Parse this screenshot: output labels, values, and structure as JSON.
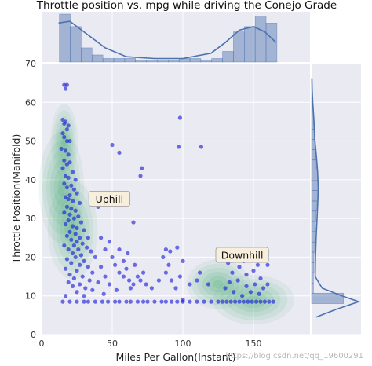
{
  "chart_data": {
    "type": "scatter",
    "title": "Throttle position vs. mpg while driving the Conejo Grade",
    "xlabel": "Miles Per Gallon(Instant)",
    "ylabel": "Throttle Position(Manifold)",
    "xlim": [
      0,
      190
    ],
    "ylim": [
      0,
      70
    ],
    "xticks": [
      0,
      50,
      100,
      150
    ],
    "yticks": [
      0,
      10,
      20,
      30,
      40,
      50,
      60,
      70
    ],
    "grid": true,
    "annotations": [
      {
        "text": "Uphill",
        "x": 48,
        "y": 35
      },
      {
        "text": "Downhill",
        "x": 142,
        "y": 20.5
      }
    ],
    "marginal_x": {
      "bin_edges": [
        12.6,
        20.3,
        28.0,
        35.7,
        43.4,
        51.1,
        58.8,
        66.5,
        74.2,
        81.9,
        89.6,
        97.3,
        105.0,
        112.7,
        120.4,
        128.1,
        135.8,
        143.5,
        151.2,
        158.9,
        166.6
      ],
      "heights": [
        0.027,
        0.02,
        0.008,
        0.004,
        0.002,
        0.002,
        0.002,
        0.001,
        0.001,
        0.001,
        0.001,
        0.002,
        0.002,
        0.001,
        0.002,
        0.006,
        0.017,
        0.02,
        0.026,
        0.022
      ],
      "kde_x": [
        12,
        20,
        30,
        45,
        60,
        80,
        100,
        120,
        130,
        140,
        150,
        158,
        166
      ],
      "kde_y": [
        0.022,
        0.023,
        0.017,
        0.008,
        0.003,
        0.002,
        0.002,
        0.005,
        0.011,
        0.018,
        0.02,
        0.017,
        0.011
      ]
    },
    "marginal_y": {
      "bin_edges": [
        8.0,
        10.7,
        13.3,
        16.0,
        18.6,
        21.3,
        23.9,
        26.6,
        29.2,
        31.9,
        34.5,
        37.2,
        39.8,
        42.5,
        45.1,
        47.8,
        50.4,
        53.1,
        55.7,
        58.4,
        61.0,
        63.7,
        66.3
      ],
      "heights": [
        0.105,
        0.006,
        0.006,
        0.008,
        0.008,
        0.012,
        0.012,
        0.013,
        0.015,
        0.018,
        0.02,
        0.022,
        0.02,
        0.016,
        0.014,
        0.011,
        0.009,
        0.008,
        0.006,
        0.004,
        0.003,
        0.002
      ],
      "kde_y": [
        4.5,
        6.5,
        8.5,
        10.0,
        12.0,
        15.0,
        20.0,
        25.0,
        30.0,
        35.0,
        38.0,
        42.0,
        46.0,
        50.0,
        55.0,
        60.0,
        63.0,
        66.0
      ],
      "kde_x": [
        0.015,
        0.08,
        0.155,
        0.1,
        0.035,
        0.012,
        0.013,
        0.015,
        0.018,
        0.021,
        0.022,
        0.02,
        0.016,
        0.011,
        0.008,
        0.004,
        0.002,
        0.001
      ]
    },
    "kde_regions": [
      {
        "x": 14,
        "y": 38,
        "sx": 10,
        "sy": 9
      },
      {
        "x": 22,
        "y": 27,
        "sx": 11,
        "sy": 8
      },
      {
        "x": 16,
        "y": 50,
        "sx": 6,
        "sy": 6
      },
      {
        "x": 150,
        "y": 9,
        "sx": 18,
        "sy": 4
      },
      {
        "x": 125,
        "y": 13,
        "sx": 14,
        "sy": 4
      }
    ],
    "series": [
      {
        "points": [
          [
            16,
            64.5
          ],
          [
            17,
            63.5
          ],
          [
            18,
            64.5
          ],
          [
            15,
            55.5
          ],
          [
            16,
            54.5
          ],
          [
            17,
            55
          ],
          [
            18,
            53
          ],
          [
            15,
            52
          ],
          [
            19,
            54
          ],
          [
            16,
            51
          ],
          [
            18,
            50
          ],
          [
            20,
            50
          ],
          [
            14,
            48
          ],
          [
            17,
            47.5
          ],
          [
            19,
            46.5
          ],
          [
            16,
            45
          ],
          [
            18,
            44
          ],
          [
            20,
            44.5
          ],
          [
            15,
            43
          ],
          [
            22,
            42
          ],
          [
            17,
            41
          ],
          [
            19,
            40.5
          ],
          [
            24,
            40
          ],
          [
            16,
            39
          ],
          [
            21,
            38.5
          ],
          [
            18,
            38
          ],
          [
            23,
            37.5
          ],
          [
            20,
            36
          ],
          [
            25,
            36.5
          ],
          [
            17,
            35.5
          ],
          [
            19,
            35
          ],
          [
            22,
            34.5
          ],
          [
            27,
            34
          ],
          [
            18,
            33
          ],
          [
            21,
            32.5
          ],
          [
            24,
            32
          ],
          [
            16,
            31.5
          ],
          [
            20,
            31
          ],
          [
            26,
            30.5
          ],
          [
            23,
            30
          ],
          [
            19,
            29.5
          ],
          [
            28,
            29
          ],
          [
            17,
            28.5
          ],
          [
            22,
            28
          ],
          [
            25,
            27.5
          ],
          [
            30,
            27
          ],
          [
            20,
            26.5
          ],
          [
            24,
            26
          ],
          [
            18,
            25.5
          ],
          [
            27,
            25
          ],
          [
            33,
            25
          ],
          [
            21,
            24.5
          ],
          [
            25,
            24
          ],
          [
            29,
            23.5
          ],
          [
            16,
            23
          ],
          [
            23,
            23
          ],
          [
            32,
            22.5
          ],
          [
            19,
            22
          ],
          [
            26,
            22
          ],
          [
            35,
            21.5
          ],
          [
            22,
            21
          ],
          [
            28,
            20.5
          ],
          [
            24,
            20
          ],
          [
            38,
            20
          ],
          [
            18,
            19.5
          ],
          [
            30,
            19
          ],
          [
            21,
            18.5
          ],
          [
            27,
            18
          ],
          [
            33,
            17.5
          ],
          [
            42,
            17.5
          ],
          [
            17,
            17
          ],
          [
            25,
            16.5
          ],
          [
            36,
            16
          ],
          [
            20,
            15.5
          ],
          [
            29,
            15
          ],
          [
            45,
            15
          ],
          [
            23,
            14.5
          ],
          [
            34,
            14
          ],
          [
            19,
            13.5
          ],
          [
            40,
            13.5
          ],
          [
            27,
            13
          ],
          [
            48,
            13
          ],
          [
            22,
            12.5
          ],
          [
            31,
            12
          ],
          [
            36,
            11.5
          ],
          [
            53,
            11.5
          ],
          [
            25,
            11
          ],
          [
            44,
            10.5
          ],
          [
            17,
            10
          ],
          [
            30,
            10
          ],
          [
            40,
            33
          ],
          [
            42,
            25
          ],
          [
            45,
            22
          ],
          [
            48,
            24
          ],
          [
            50,
            20
          ],
          [
            52,
            18
          ],
          [
            55,
            16
          ],
          [
            58,
            15
          ],
          [
            60,
            17
          ],
          [
            62,
            14
          ],
          [
            65,
            13
          ],
          [
            55,
            22
          ],
          [
            58,
            19
          ],
          [
            61,
            21
          ],
          [
            63,
            12
          ],
          [
            68,
            15
          ],
          [
            66,
            18
          ],
          [
            70,
            14
          ],
          [
            72,
            16
          ],
          [
            74,
            13
          ],
          [
            78,
            12
          ],
          [
            83,
            14
          ],
          [
            88,
            16
          ],
          [
            86,
            20
          ],
          [
            90,
            18
          ],
          [
            92,
            14
          ],
          [
            95,
            12
          ],
          [
            98,
            15
          ],
          [
            105,
            13
          ],
          [
            110,
            14
          ],
          [
            112,
            16
          ],
          [
            118,
            13
          ],
          [
            100,
            9
          ],
          [
            50,
            49
          ],
          [
            55,
            47
          ],
          [
            70,
            41
          ],
          [
            71,
            43
          ],
          [
            98,
            56
          ],
          [
            97,
            48.5
          ],
          [
            113,
            48.5
          ],
          [
            88,
            22
          ],
          [
            91,
            21.5
          ],
          [
            96,
            22.5
          ],
          [
            100,
            19
          ],
          [
            65,
            29
          ],
          [
            15,
            8.5
          ],
          [
            20,
            8.5
          ],
          [
            25,
            8.5
          ],
          [
            30,
            8.5
          ],
          [
            33,
            8.5
          ],
          [
            38,
            8.5
          ],
          [
            43,
            8.5
          ],
          [
            47,
            8.5
          ],
          [
            52,
            8.5
          ],
          [
            55,
            8.5
          ],
          [
            60,
            8.5
          ],
          [
            63,
            8.5
          ],
          [
            68,
            8.5
          ],
          [
            72,
            8.5
          ],
          [
            75,
            8.5
          ],
          [
            80,
            8.5
          ],
          [
            85,
            8.5
          ],
          [
            88,
            8.5
          ],
          [
            92,
            8.5
          ],
          [
            96,
            8.5
          ],
          [
            100,
            8.5
          ],
          [
            105,
            8.5
          ],
          [
            110,
            8.5
          ],
          [
            115,
            8.5
          ],
          [
            120,
            8.5
          ],
          [
            125,
            8.5
          ],
          [
            128,
            8.5
          ],
          [
            131,
            8.5
          ],
          [
            134,
            8.5
          ],
          [
            137,
            8.5
          ],
          [
            140,
            8.5
          ],
          [
            143,
            8.5
          ],
          [
            146,
            8.5
          ],
          [
            149,
            8.5
          ],
          [
            152,
            8.5
          ],
          [
            155,
            8.5
          ],
          [
            158,
            8.5
          ],
          [
            161,
            8.5
          ],
          [
            164,
            8.5
          ],
          [
            130,
            12
          ],
          [
            133,
            13.5
          ],
          [
            136,
            11
          ],
          [
            139,
            14
          ],
          [
            142,
            10
          ],
          [
            145,
            12.5
          ],
          [
            148,
            11
          ],
          [
            151,
            13
          ],
          [
            154,
            10.5
          ],
          [
            157,
            12
          ],
          [
            135,
            16
          ],
          [
            140,
            17.5
          ],
          [
            145,
            15.5
          ],
          [
            150,
            16.5
          ],
          [
            155,
            14.5
          ],
          [
            160,
            13
          ],
          [
            143,
            19
          ],
          [
            148,
            20.5
          ],
          [
            138,
            21
          ],
          [
            153,
            18
          ],
          [
            160,
            18
          ],
          [
            132,
            18.5
          ],
          [
            158,
            22
          ]
        ]
      }
    ]
  }
}
